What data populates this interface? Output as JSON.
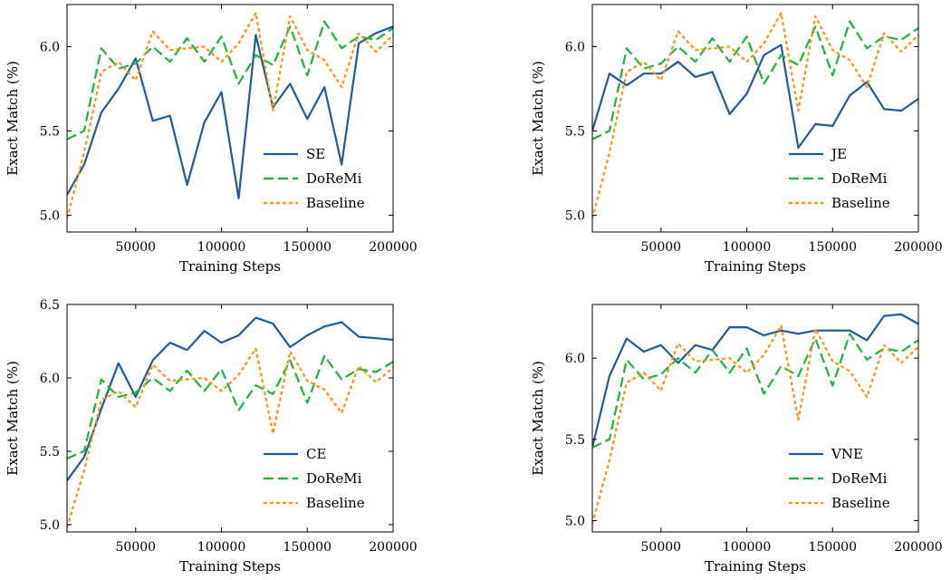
{
  "chart_data": [
    {
      "type": "line",
      "xlabel": "Training Steps",
      "ylabel": "Exact Match (%)",
      "xlim": [
        10000,
        200000
      ],
      "ylim": [
        4.9,
        6.25
      ],
      "xticks": [
        50000,
        100000,
        150000,
        200000
      ],
      "yticks": [
        5.0,
        5.5,
        6.0
      ],
      "ytick_labels": [
        "5.0",
        "5.5",
        "6.0"
      ],
      "legend_position": "lower-right",
      "x": [
        10000,
        20000,
        30000,
        40000,
        50000,
        60000,
        70000,
        80000,
        90000,
        100000,
        110000,
        120000,
        130000,
        140000,
        150000,
        160000,
        170000,
        180000,
        190000,
        200000
      ],
      "series": [
        {
          "name": "SE",
          "color": "#1f5a9b",
          "style": "solid",
          "values": [
            5.12,
            5.3,
            5.61,
            5.75,
            5.93,
            5.56,
            5.59,
            5.18,
            5.55,
            5.73,
            5.1,
            6.07,
            5.64,
            5.78,
            5.57,
            5.76,
            5.3,
            6.02,
            6.08,
            6.12
          ]
        },
        {
          "name": "DoReMi",
          "color": "#1db43a",
          "style": "dashed",
          "values": [
            5.45,
            5.5,
            5.99,
            5.87,
            5.9,
            6.0,
            5.91,
            6.05,
            5.91,
            6.06,
            5.78,
            5.95,
            5.89,
            6.12,
            5.83,
            6.15,
            5.99,
            6.06,
            6.04,
            6.11
          ]
        },
        {
          "name": "Baseline",
          "color": "#ff9410",
          "style": "dotted",
          "values": [
            4.98,
            5.37,
            5.85,
            5.91,
            5.8,
            6.09,
            5.98,
            5.99,
            6.0,
            5.91,
            6.02,
            6.2,
            5.62,
            6.18,
            5.98,
            5.92,
            5.76,
            6.08,
            5.97,
            6.07
          ]
        }
      ]
    },
    {
      "type": "line",
      "xlabel": "Training Steps",
      "ylabel": "Exact Match (%)",
      "xlim": [
        10000,
        200000
      ],
      "ylim": [
        4.9,
        6.25
      ],
      "xticks": [
        50000,
        100000,
        150000,
        200000
      ],
      "yticks": [
        5.0,
        5.5,
        6.0
      ],
      "ytick_labels": [
        "5.0",
        "5.5",
        "6.0"
      ],
      "legend_position": "lower-right",
      "x": [
        10000,
        20000,
        30000,
        40000,
        50000,
        60000,
        70000,
        80000,
        90000,
        100000,
        110000,
        120000,
        130000,
        140000,
        150000,
        160000,
        170000,
        180000,
        190000,
        200000
      ],
      "series": [
        {
          "name": "JE",
          "color": "#1f5a9b",
          "style": "solid",
          "values": [
            5.5,
            5.84,
            5.77,
            5.84,
            5.84,
            5.91,
            5.82,
            5.85,
            5.6,
            5.72,
            5.95,
            6.01,
            5.4,
            5.54,
            5.53,
            5.71,
            5.79,
            5.63,
            5.62,
            5.69
          ]
        },
        {
          "name": "DoReMi",
          "color": "#1db43a",
          "style": "dashed",
          "values": [
            5.45,
            5.5,
            5.99,
            5.87,
            5.9,
            6.0,
            5.91,
            6.05,
            5.91,
            6.06,
            5.78,
            5.95,
            5.89,
            6.12,
            5.83,
            6.15,
            5.99,
            6.06,
            6.04,
            6.11
          ]
        },
        {
          "name": "Baseline",
          "color": "#ff9410",
          "style": "dotted",
          "values": [
            4.98,
            5.37,
            5.85,
            5.91,
            5.8,
            6.09,
            5.98,
            5.99,
            6.0,
            5.91,
            6.02,
            6.2,
            5.62,
            6.18,
            5.98,
            5.92,
            5.76,
            6.08,
            5.97,
            6.07
          ]
        }
      ]
    },
    {
      "type": "line",
      "xlabel": "Training Steps",
      "ylabel": "Exact Match (%)",
      "xlim": [
        10000,
        200000
      ],
      "ylim": [
        4.95,
        6.5
      ],
      "xticks": [
        50000,
        100000,
        150000,
        200000
      ],
      "yticks": [
        5.0,
        5.5,
        6.0,
        6.5
      ],
      "ytick_labels": [
        "5.0",
        "5.5",
        "6.0",
        "6.5"
      ],
      "legend_position": "lower-right",
      "x": [
        10000,
        20000,
        30000,
        40000,
        50000,
        60000,
        70000,
        80000,
        90000,
        100000,
        110000,
        120000,
        130000,
        140000,
        150000,
        160000,
        170000,
        180000,
        190000,
        200000
      ],
      "series": [
        {
          "name": "CE",
          "color": "#1f5a9b",
          "style": "solid",
          "values": [
            5.3,
            5.46,
            5.79,
            6.1,
            5.87,
            6.12,
            6.24,
            6.19,
            6.32,
            6.24,
            6.29,
            6.41,
            6.37,
            6.21,
            6.29,
            6.35,
            6.38,
            6.28,
            6.27,
            6.26
          ]
        },
        {
          "name": "DoReMi",
          "color": "#1db43a",
          "style": "dashed",
          "values": [
            5.45,
            5.5,
            5.99,
            5.87,
            5.9,
            6.0,
            5.91,
            6.05,
            5.91,
            6.06,
            5.78,
            5.95,
            5.89,
            6.12,
            5.83,
            6.15,
            5.99,
            6.06,
            6.04,
            6.11
          ]
        },
        {
          "name": "Baseline",
          "color": "#ff9410",
          "style": "dotted",
          "values": [
            4.98,
            5.37,
            5.85,
            5.91,
            5.8,
            6.09,
            5.98,
            5.99,
            6.0,
            5.91,
            6.02,
            6.2,
            5.62,
            6.18,
            5.98,
            5.92,
            5.76,
            6.08,
            5.97,
            6.07
          ]
        }
      ]
    },
    {
      "type": "line",
      "xlabel": "Training Steps",
      "ylabel": "Exact Match (%)",
      "xlim": [
        10000,
        200000
      ],
      "ylim": [
        4.93,
        6.33
      ],
      "xticks": [
        50000,
        100000,
        150000,
        200000
      ],
      "yticks": [
        5.0,
        5.5,
        6.0
      ],
      "ytick_labels": [
        "5.0",
        "5.5",
        "6.0"
      ],
      "legend_position": "lower-right",
      "x": [
        10000,
        20000,
        30000,
        40000,
        50000,
        60000,
        70000,
        80000,
        90000,
        100000,
        110000,
        120000,
        130000,
        140000,
        150000,
        160000,
        170000,
        180000,
        190000,
        200000
      ],
      "series": [
        {
          "name": "VNE",
          "color": "#1f5a9b",
          "style": "solid",
          "values": [
            5.45,
            5.89,
            6.12,
            6.04,
            6.08,
            5.97,
            6.08,
            6.05,
            6.19,
            6.19,
            6.14,
            6.17,
            6.15,
            6.17,
            6.17,
            6.17,
            6.11,
            6.26,
            6.27,
            6.21
          ]
        },
        {
          "name": "DoReMi",
          "color": "#1db43a",
          "style": "dashed",
          "values": [
            5.45,
            5.5,
            5.99,
            5.87,
            5.9,
            6.0,
            5.91,
            6.05,
            5.91,
            6.06,
            5.78,
            5.95,
            5.89,
            6.12,
            5.83,
            6.15,
            5.99,
            6.06,
            6.04,
            6.11
          ]
        },
        {
          "name": "Baseline",
          "color": "#ff9410",
          "style": "dotted",
          "values": [
            4.98,
            5.37,
            5.85,
            5.91,
            5.8,
            6.09,
            5.98,
            5.99,
            6.0,
            5.91,
            6.02,
            6.2,
            5.62,
            6.18,
            5.98,
            5.92,
            5.76,
            6.08,
            5.97,
            6.07
          ]
        }
      ]
    }
  ]
}
